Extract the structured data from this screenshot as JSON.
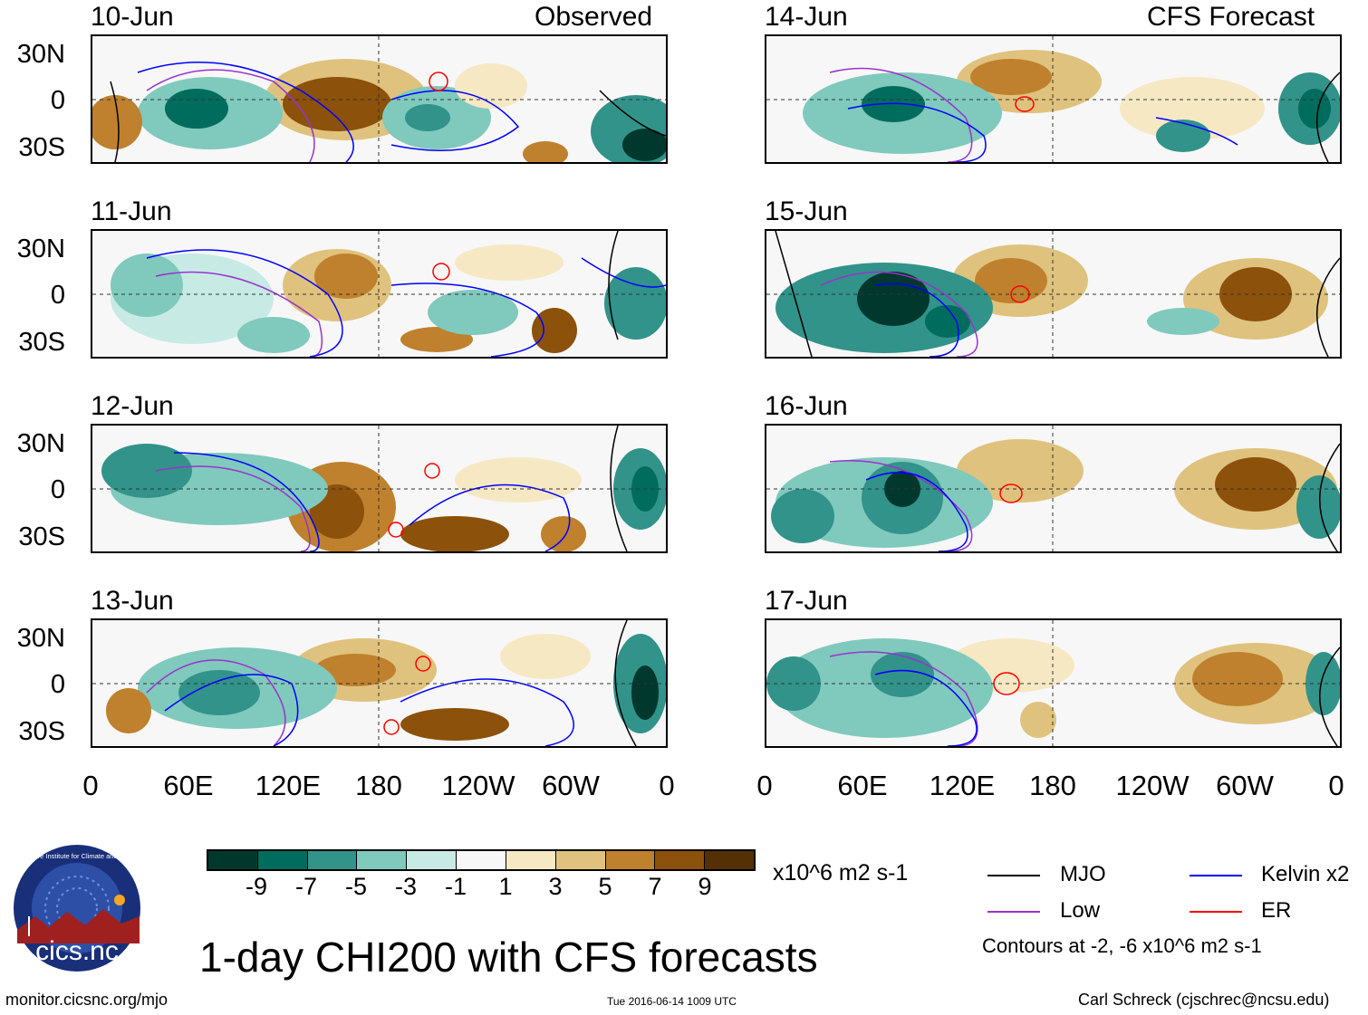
{
  "left_header": "Observed",
  "right_header": "CFS Forecast",
  "left_panels": [
    {
      "date": "10-Jun"
    },
    {
      "date": "11-Jun"
    },
    {
      "date": "12-Jun"
    },
    {
      "date": "13-Jun"
    }
  ],
  "right_panels": [
    {
      "date": "14-Jun"
    },
    {
      "date": "15-Jun"
    },
    {
      "date": "16-Jun"
    },
    {
      "date": "17-Jun"
    }
  ],
  "y_ticks": [
    "30N",
    "0",
    "30S"
  ],
  "x_ticks": [
    "0",
    "60E",
    "120E",
    "180",
    "120W",
    "60W",
    "0"
  ],
  "colorbar": {
    "colors": [
      "#00382e",
      "#006c5e",
      "#31938a",
      "#80c9bd",
      "#c7eae5",
      "#f7f7f7",
      "#f6e8c3",
      "#dfc27d",
      "#bf812d",
      "#8c510a",
      "#543005"
    ],
    "labels": [
      "-9",
      "-7",
      "-5",
      "-3",
      "-1",
      "1",
      "3",
      "5",
      "7",
      "9"
    ],
    "units": "x10^6 m2 s-1"
  },
  "legend": {
    "mjo": "MJO",
    "kelvin": "Kelvin x2",
    "low": "Low",
    "er": "ER",
    "colors": {
      "mjo": "#000000",
      "kelvin": "#0000ff",
      "low": "#9933cc",
      "er": "#ff0000"
    },
    "contours": "Contours at -2, -6 x10^6 m2 s-1"
  },
  "logo_text": "cics.nc",
  "logo_ring": "Cooperative Institute for Climate and Satellites",
  "main_title": "1-day CHI200 with CFS forecasts",
  "footer": {
    "url": "monitor.cicsnc.org/mjo",
    "timestamp": "Tue 2016-06-14 1009 UTC",
    "author": "Carl Schreck (cjschrec@ncsu.edu)"
  }
}
